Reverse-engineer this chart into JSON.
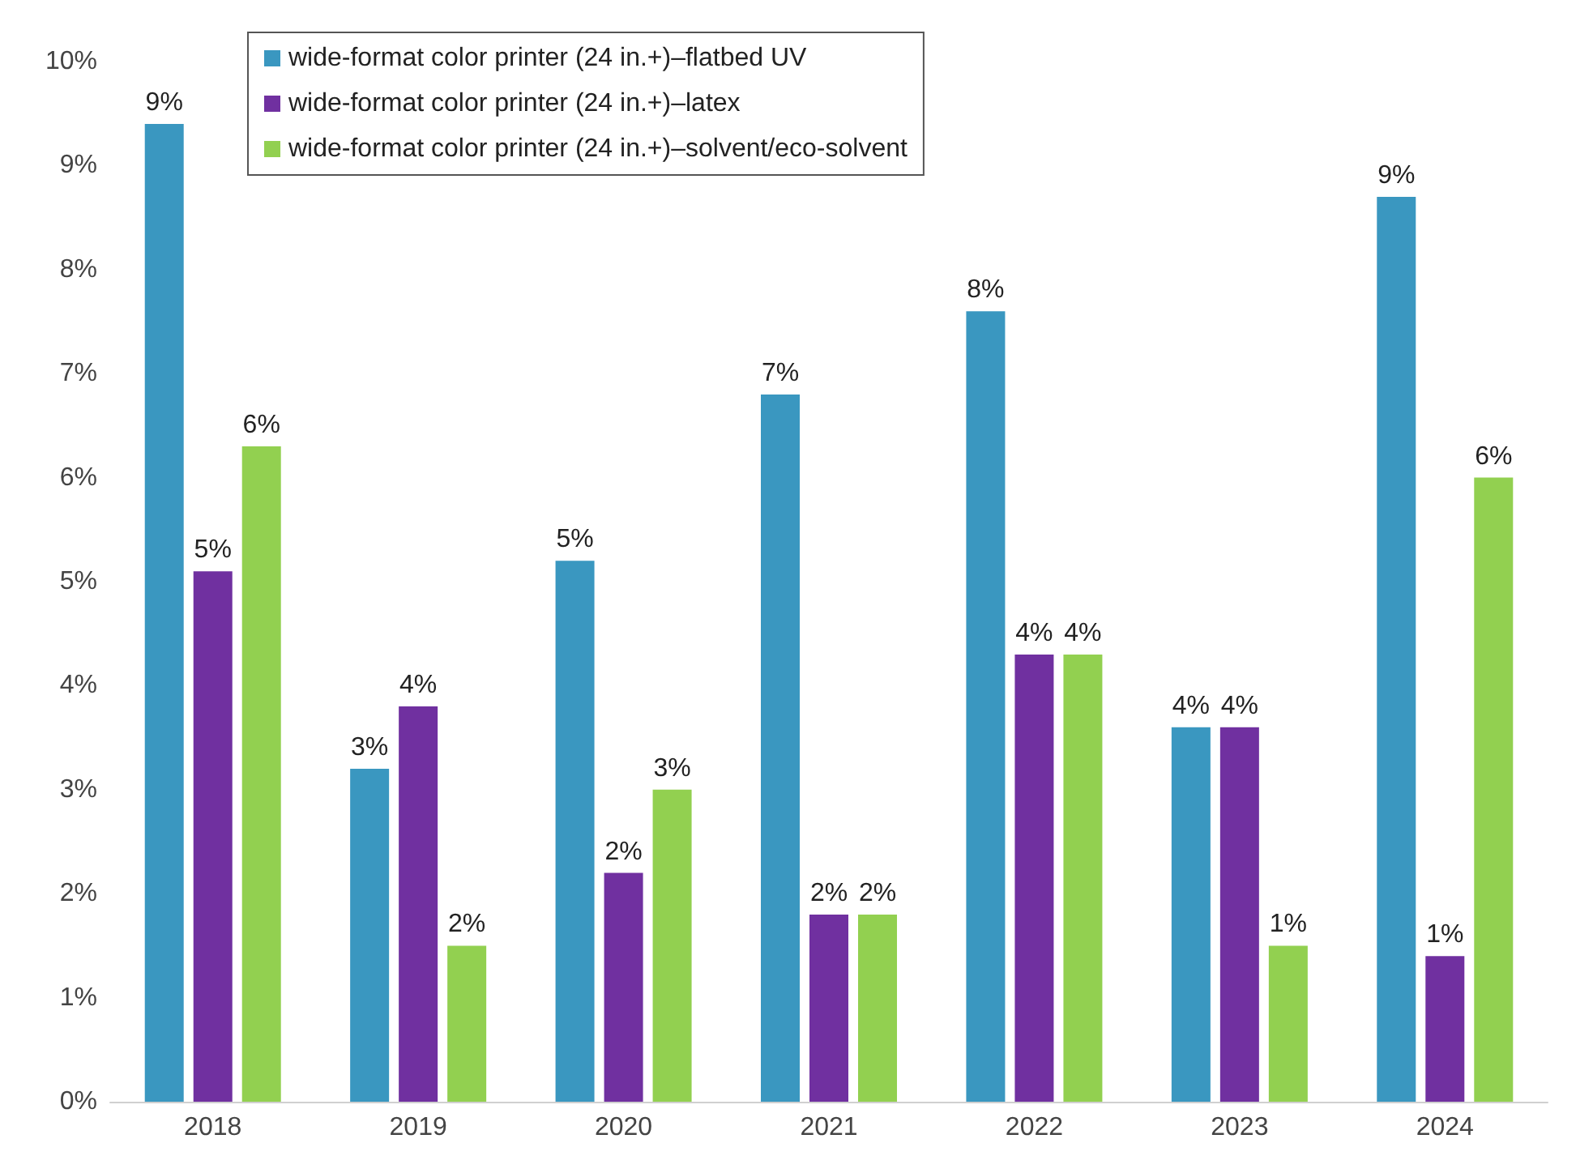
{
  "chart_data": {
    "type": "bar",
    "categories": [
      "2018",
      "2019",
      "2020",
      "2021",
      "2022",
      "2023",
      "2024"
    ],
    "series": [
      {
        "name": "wide-format color printer (24 in.+)–flatbed UV",
        "color": "#3a97c0",
        "values": [
          9.4,
          3.2,
          5.2,
          6.8,
          7.6,
          3.6,
          8.7
        ],
        "value_labels": [
          "9%",
          "3%",
          "5%",
          "7%",
          "8%",
          "4%",
          "9%"
        ]
      },
      {
        "name": "wide-format color printer (24 in.+)–latex",
        "color": "#7030a0",
        "values": [
          5.1,
          3.8,
          2.2,
          1.8,
          4.3,
          3.6,
          1.4
        ],
        "value_labels": [
          "5%",
          "4%",
          "2%",
          "2%",
          "4%",
          "4%",
          "1%"
        ]
      },
      {
        "name": "wide-format color printer (24 in.+)–solvent/eco-solvent",
        "color": "#92d050",
        "values": [
          6.3,
          1.5,
          3.0,
          1.8,
          4.3,
          1.5,
          6.0
        ],
        "value_labels": [
          "6%",
          "2%",
          "3%",
          "2%",
          "4%",
          "1%",
          "6%"
        ]
      }
    ],
    "ylim": [
      0,
      10
    ],
    "yticks": [
      {
        "value": 0,
        "label": "0%"
      },
      {
        "value": 1,
        "label": "1%"
      },
      {
        "value": 2,
        "label": "2%"
      },
      {
        "value": 3,
        "label": "3%"
      },
      {
        "value": 4,
        "label": "4%"
      },
      {
        "value": 5,
        "label": "5%"
      },
      {
        "value": 6,
        "label": "6%"
      },
      {
        "value": 7,
        "label": "7%"
      },
      {
        "value": 8,
        "label": "8%"
      },
      {
        "value": 9,
        "label": "9%"
      },
      {
        "value": 10,
        "label": "10%"
      }
    ],
    "grid": false,
    "legend": "top"
  }
}
